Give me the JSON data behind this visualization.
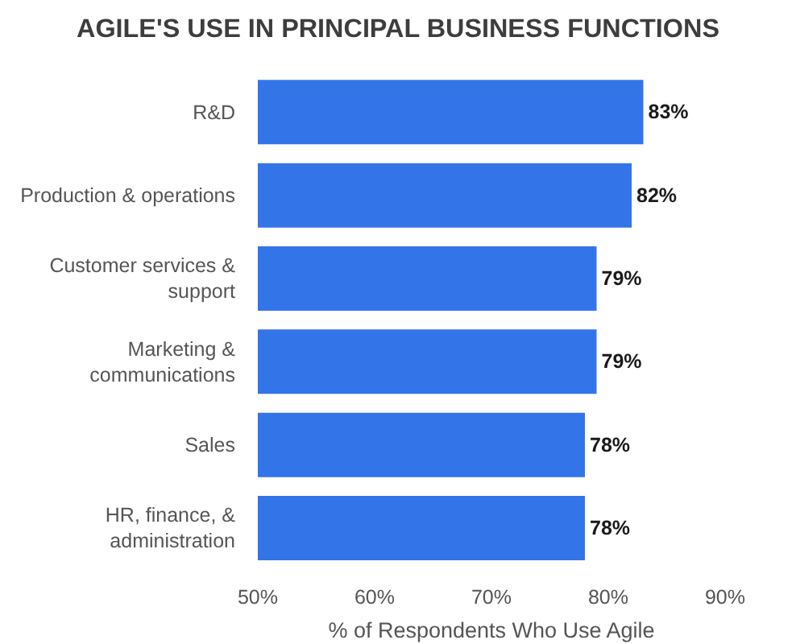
{
  "chart_data": {
    "type": "bar",
    "orientation": "horizontal",
    "title": "AGILE'S USE IN PRINCIPAL BUSINESS FUNCTIONS",
    "xlabel": "% of Respondents Who Use Agile",
    "categories": [
      "R&D",
      "Production & operations",
      "Customer services & support",
      "Marketing & communications",
      "Sales",
      "HR, finance, & administration"
    ],
    "values": [
      83,
      82,
      79,
      79,
      78,
      78
    ],
    "color": "#3474e9",
    "value_labels": [
      "83%",
      "82%",
      "79%",
      "79%",
      "78%",
      "78%"
    ],
    "xlim": [
      50,
      90
    ],
    "xticks": [
      {
        "value": 50,
        "label": "50%"
      },
      {
        "value": 60,
        "label": "60%"
      },
      {
        "value": 70,
        "label": "70%"
      },
      {
        "value": 80,
        "label": "80%"
      },
      {
        "value": 90,
        "label": "90%"
      }
    ]
  }
}
